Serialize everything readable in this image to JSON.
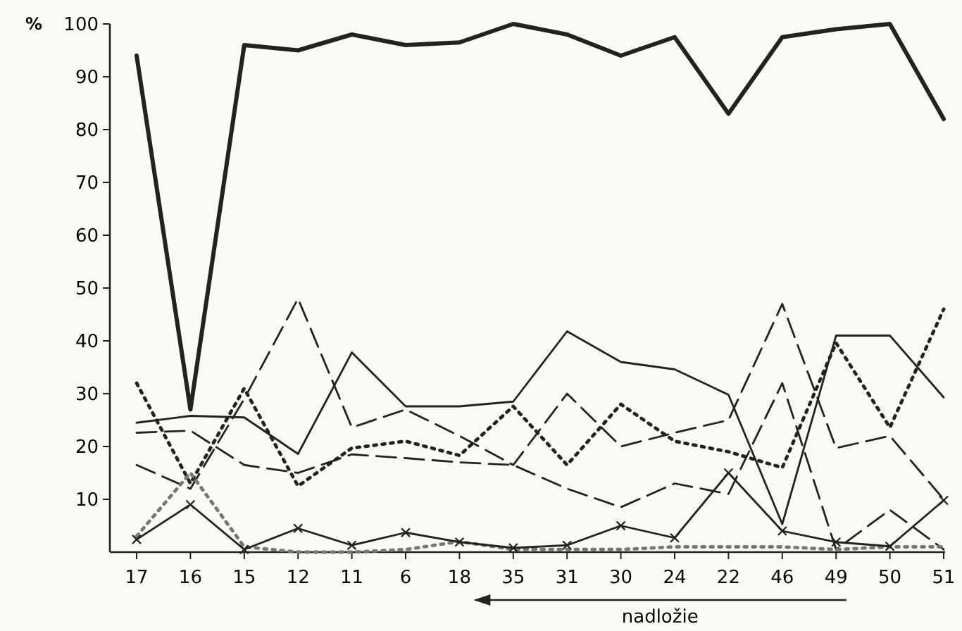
{
  "chart_data": {
    "type": "line",
    "ylabel": "%",
    "categories": [
      "17",
      "16",
      "15",
      "12",
      "11",
      "6",
      "18",
      "35",
      "31",
      "30",
      "24",
      "22",
      "46",
      "49",
      "50",
      "51"
    ],
    "ylim": [
      0,
      100
    ],
    "yticks": [
      10,
      20,
      30,
      40,
      50,
      60,
      70,
      80,
      90,
      100
    ],
    "annotations": [
      "nadložie"
    ],
    "series": [
      {
        "color": "#222222",
        "line_style": "solid",
        "values": [
          94,
          27,
          96,
          95,
          98,
          96,
          96.5,
          100,
          98,
          94,
          97.5,
          83,
          97.5,
          99,
          100,
          82
        ]
      },
      {
        "color": "#222222",
        "line_style": "solid",
        "values": [
          24.5,
          25.8,
          25.5,
          18.6,
          37.8,
          27.6,
          27.6,
          28.5,
          41.8,
          36,
          34.6,
          29.8,
          5.3,
          41,
          41,
          29.3
        ]
      },
      {
        "color": "#222222",
        "line_style": "dotted",
        "values": [
          32,
          13,
          31,
          12.5,
          19.7,
          21,
          18.3,
          27.6,
          16.5,
          28,
          21,
          19,
          16,
          39.6,
          23.6,
          46
        ]
      },
      {
        "color": "#222222",
        "line_style": "dashed",
        "values": [
          22.6,
          23,
          16.5,
          15,
          18.5,
          17.8,
          17,
          16.5,
          12,
          8.5,
          13,
          11,
          32,
          0.5,
          8,
          0.5
        ]
      },
      {
        "color": "#222222",
        "line_style": "dashed",
        "values": [
          16.5,
          12,
          29,
          48,
          23.6,
          27,
          22,
          16.5,
          30,
          20,
          22.6,
          25,
          47,
          19.7,
          22,
          10
        ]
      },
      {
        "color": "#222222",
        "line_style": "solid",
        "marker": "cross",
        "values": [
          2.4,
          9,
          0.5,
          4.5,
          1.3,
          3.7,
          1.9,
          0.8,
          1.3,
          5,
          2.7,
          15,
          4,
          1.9,
          1.1,
          9.8
        ]
      },
      {
        "color": "#777777",
        "line_style": "dotted",
        "values": [
          3,
          15,
          1,
          0,
          0,
          0.5,
          2,
          0.5,
          0.5,
          0.5,
          1,
          1,
          1,
          0.5,
          1,
          1
        ]
      }
    ]
  }
}
